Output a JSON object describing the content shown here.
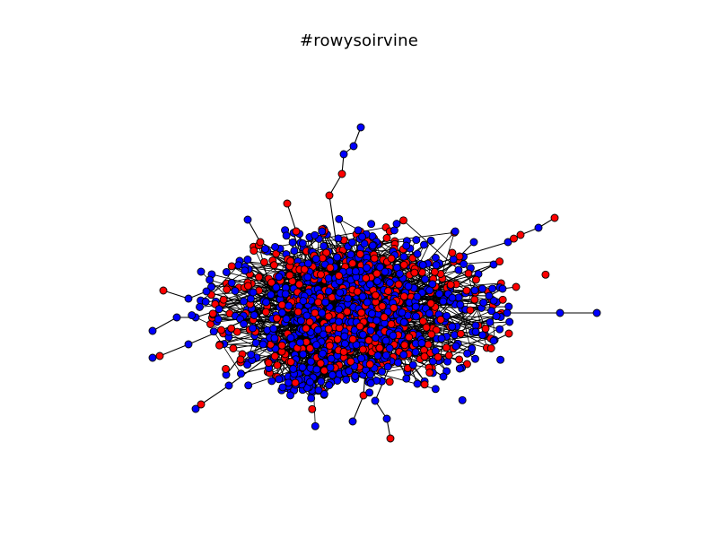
{
  "figure": {
    "title": "#rowysoirvine"
  },
  "graph": {
    "node_colors": {
      "red": "#ff0000",
      "blue": "#0000ff"
    },
    "node_outline_color": "#000000",
    "edge_color": "#000000",
    "background": "#ffffff"
  }
}
